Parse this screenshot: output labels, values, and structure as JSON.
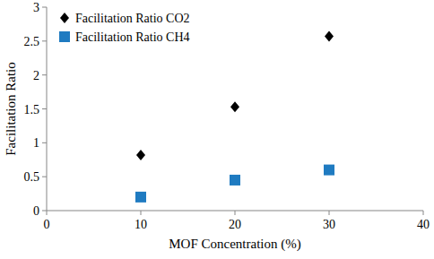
{
  "chart_data": {
    "type": "scatter",
    "x_label": "MOF Concentration (%)",
    "y_label": "Facilitation Ratio",
    "x": [
      10,
      20,
      30
    ],
    "series": [
      {
        "name": "Facilitation Ratio CO2",
        "color": "#000000",
        "marker": "diamond",
        "values": [
          0.82,
          1.53,
          2.57
        ]
      },
      {
        "name": "Facilitation Ratio CH4",
        "color": "#1f7bc1",
        "marker": "square",
        "values": [
          0.2,
          0.45,
          0.6
        ]
      }
    ],
    "xlim": [
      0,
      40
    ],
    "xticks": [
      0,
      10,
      20,
      30,
      40
    ],
    "ylim": [
      0,
      3
    ],
    "yticks": [
      0,
      0.5,
      1,
      1.5,
      2,
      2.5,
      3
    ],
    "grid": false,
    "legend": "top-left"
  }
}
